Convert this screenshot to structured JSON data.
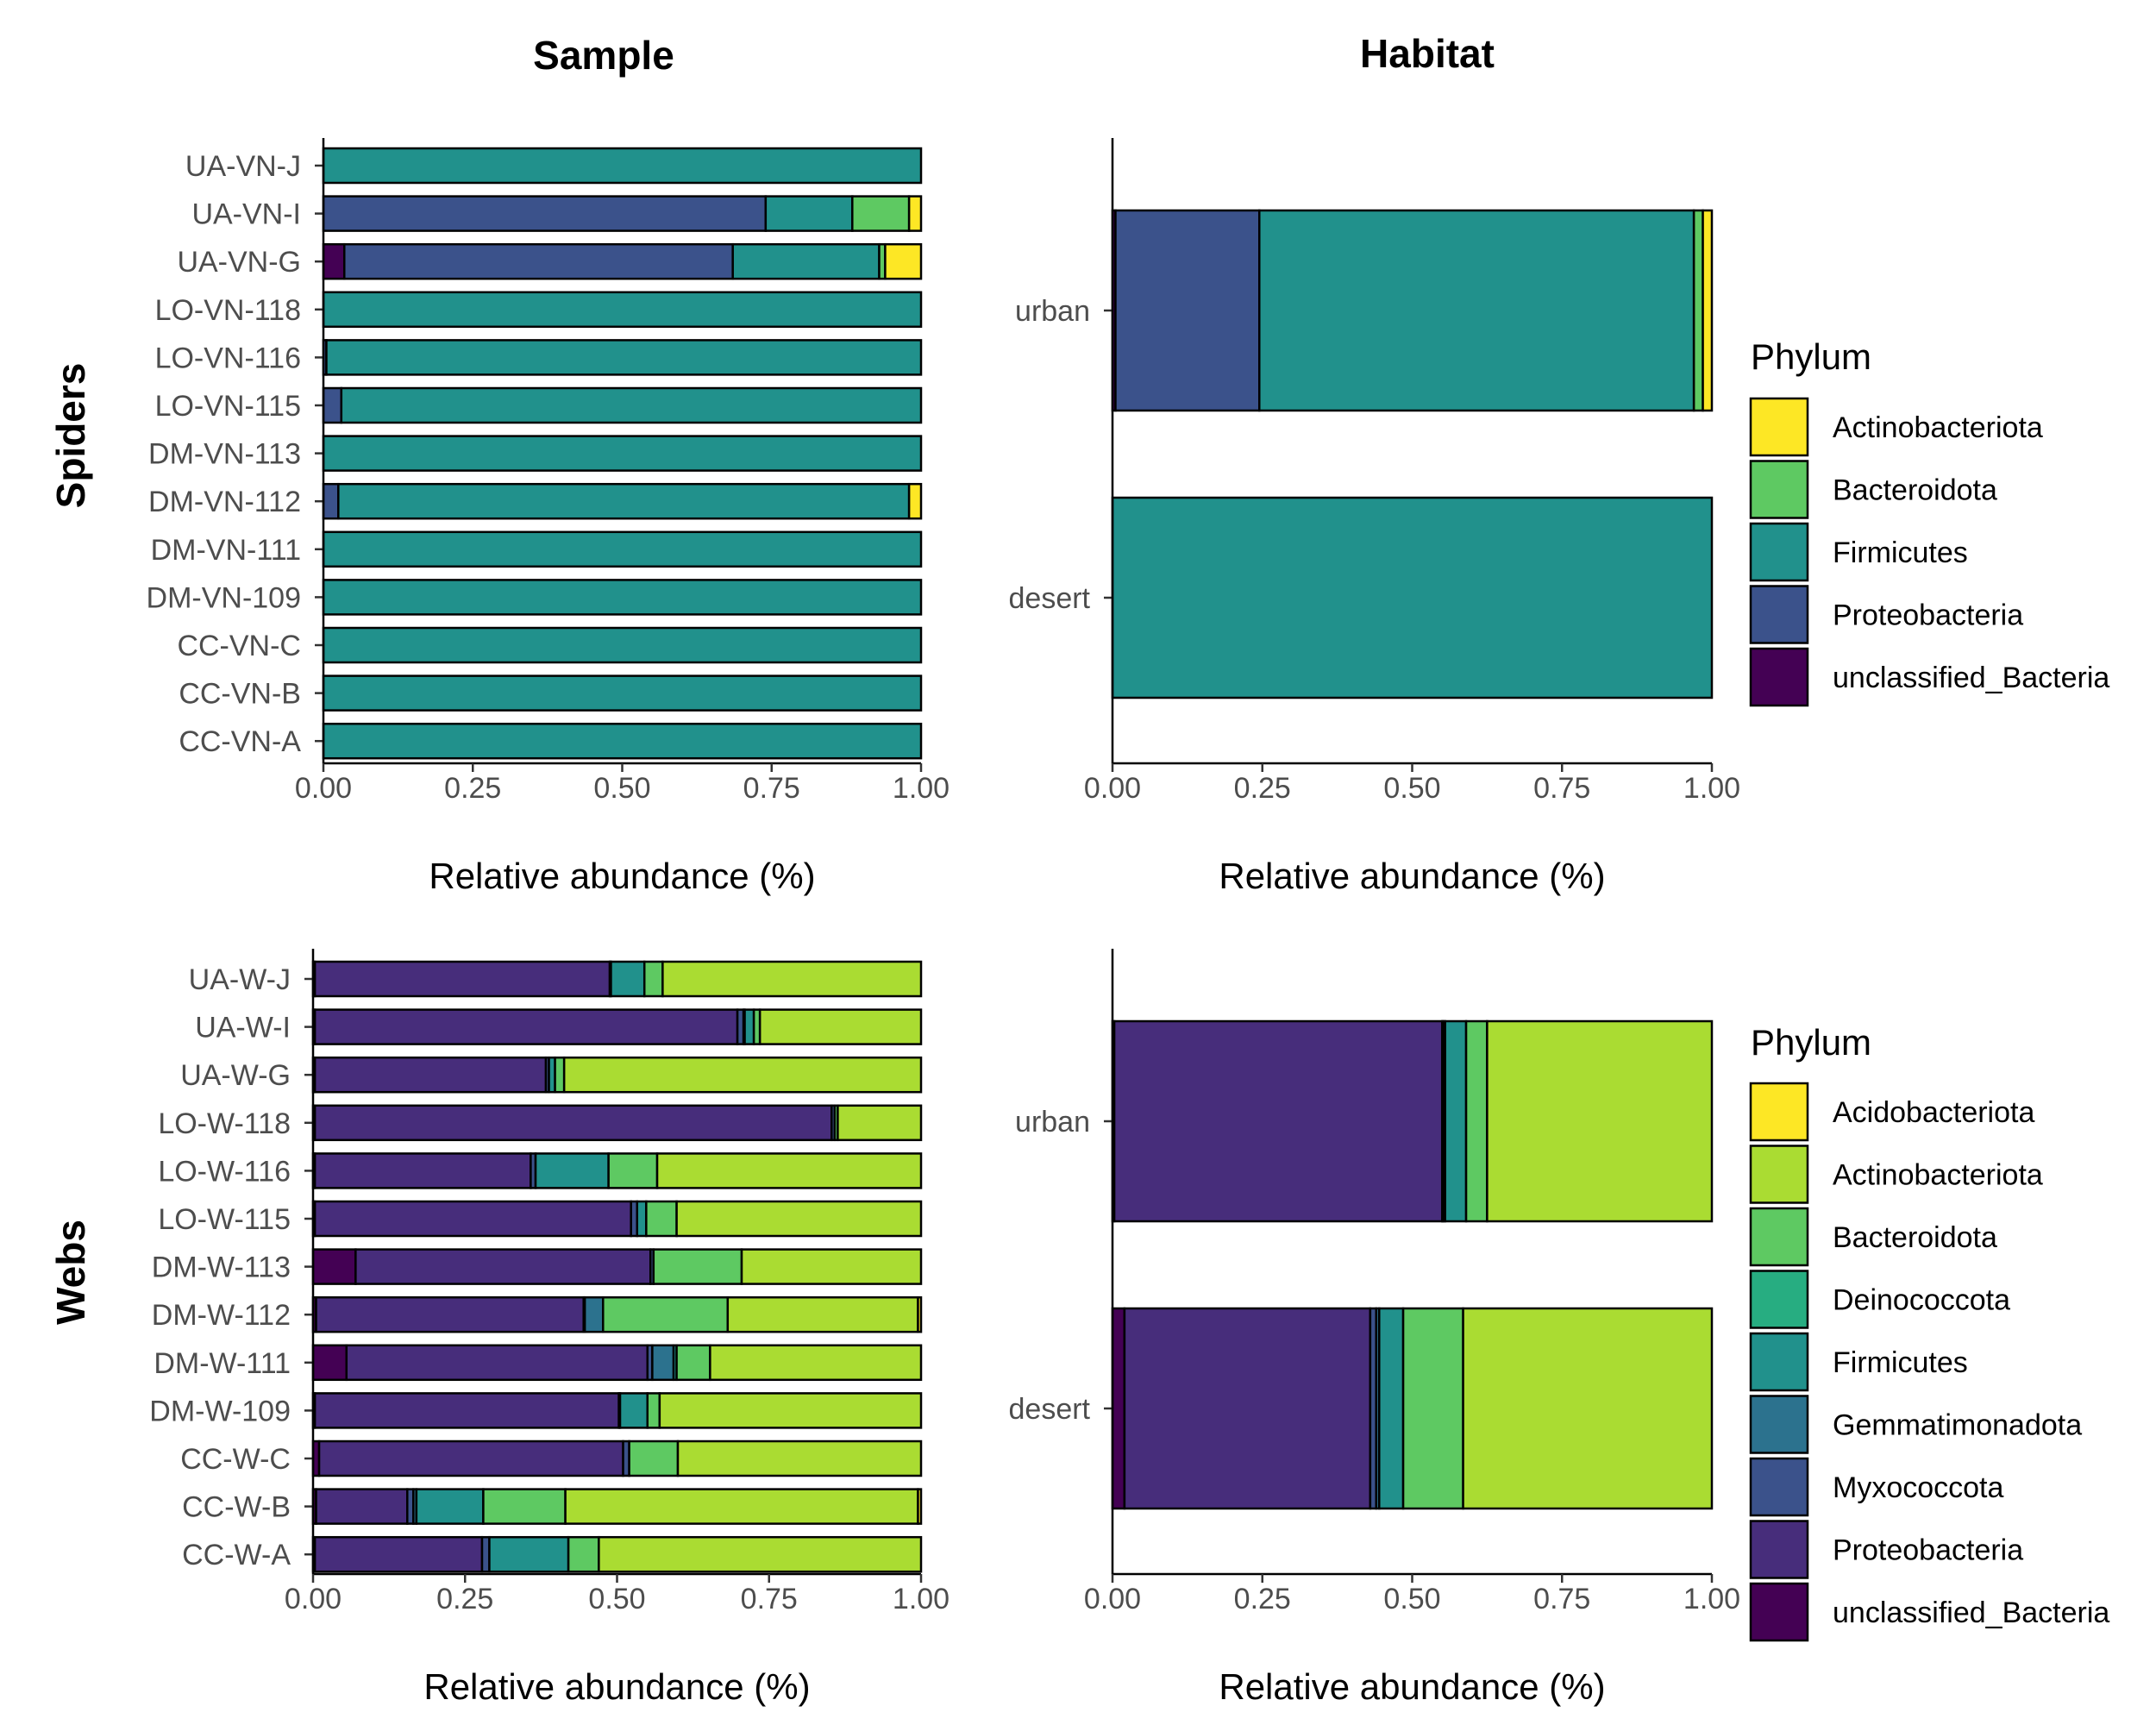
{
  "figure": {
    "col_titles": [
      "Sample",
      "Habitat"
    ],
    "row_titles": [
      "Spiders",
      "Webs"
    ]
  },
  "colors": {
    "Actinobacteriota_spiders": "#FDE725",
    "Bacteroidota": "#5EC962",
    "Firmicutes": "#21918C",
    "Proteobacteria_spiders": "#3B528B",
    "unclassified_Bacteria": "#440154",
    "Acidobacteriota": "#FDE725",
    "Actinobacteriota_webs": "#AADC32",
    "Deinococcota": "#27AD81",
    "Gemmatimonadota": "#2C728E",
    "Myxococcota": "#3B528B",
    "Proteobacteria_webs": "#472D7B"
  },
  "chart_data": [
    {
      "type": "bar",
      "orientation": "horizontal",
      "stacked": true,
      "panel": "Spiders - Sample",
      "xlabel": "Relative abundance (%)",
      "ylabel": "",
      "xlim": [
        0,
        1
      ],
      "xticks": [
        "0.00",
        "0.25",
        "0.50",
        "0.75",
        "1.00"
      ],
      "categories": [
        "UA-VN-J",
        "UA-VN-I",
        "UA-VN-G",
        "LO-VN-118",
        "LO-VN-116",
        "LO-VN-115",
        "DM-VN-113",
        "DM-VN-112",
        "DM-VN-111",
        "DM-VN-109",
        "CC-VN-C",
        "CC-VN-B",
        "CC-VN-A"
      ],
      "series": [
        {
          "name": "unclassified_Bacteria",
          "color": "#440154",
          "values": [
            0,
            0,
            0.035,
            0,
            0,
            0,
            0,
            0,
            0,
            0,
            0,
            0,
            0
          ]
        },
        {
          "name": "Proteobacteria",
          "color": "#3B528B",
          "values": [
            0,
            0.74,
            0.65,
            0,
            0.005,
            0.03,
            0,
            0.025,
            0,
            0,
            0,
            0,
            0
          ]
        },
        {
          "name": "Firmicutes",
          "color": "#21918C",
          "values": [
            1.0,
            0.145,
            0.245,
            1.0,
            0.995,
            0.97,
            1.0,
            0.955,
            1.0,
            1.0,
            1.0,
            1.0,
            1.0
          ]
        },
        {
          "name": "Bacteroidota",
          "color": "#5EC962",
          "values": [
            0,
            0.095,
            0.01,
            0,
            0,
            0,
            0,
            0,
            0,
            0,
            0,
            0,
            0
          ]
        },
        {
          "name": "Actinobacteriota",
          "color": "#FDE725",
          "values": [
            0,
            0.02,
            0.06,
            0,
            0,
            0,
            0,
            0.02,
            0,
            0,
            0,
            0,
            0
          ]
        }
      ]
    },
    {
      "type": "bar",
      "orientation": "horizontal",
      "stacked": true,
      "panel": "Spiders - Habitat",
      "xlabel": "Relative abundance (%)",
      "ylabel": "",
      "xlim": [
        0,
        1
      ],
      "xticks": [
        "0.00",
        "0.25",
        "0.50",
        "0.75",
        "1.00"
      ],
      "categories": [
        "urban",
        "desert"
      ],
      "series": [
        {
          "name": "unclassified_Bacteria",
          "color": "#440154",
          "values": [
            0.005,
            0
          ]
        },
        {
          "name": "Proteobacteria",
          "color": "#3B528B",
          "values": [
            0.24,
            0
          ]
        },
        {
          "name": "Firmicutes",
          "color": "#21918C",
          "values": [
            0.725,
            1.0
          ]
        },
        {
          "name": "Bacteroidota",
          "color": "#5EC962",
          "values": [
            0.015,
            0
          ]
        },
        {
          "name": "Actinobacteriota",
          "color": "#FDE725",
          "values": [
            0.015,
            0
          ]
        }
      ],
      "legend": {
        "title": "Phylum",
        "position": "right",
        "items": [
          {
            "label": "Actinobacteriota",
            "color": "#FDE725"
          },
          {
            "label": "Bacteroidota",
            "color": "#5EC962"
          },
          {
            "label": "Firmicutes",
            "color": "#21918C"
          },
          {
            "label": "Proteobacteria",
            "color": "#3B528B"
          },
          {
            "label": "unclassified_Bacteria",
            "color": "#440154"
          }
        ]
      }
    },
    {
      "type": "bar",
      "orientation": "horizontal",
      "stacked": true,
      "panel": "Webs - Sample",
      "xlabel": "Relative abundance (%)",
      "ylabel": "",
      "xlim": [
        0,
        1
      ],
      "xticks": [
        "0.00",
        "0.25",
        "0.50",
        "0.75",
        "1.00"
      ],
      "categories": [
        "UA-W-J",
        "UA-W-I",
        "UA-W-G",
        "LO-W-118",
        "LO-W-116",
        "LO-W-115",
        "DM-W-113",
        "DM-W-112",
        "DM-W-111",
        "DM-W-109",
        "CC-W-C",
        "CC-W-B",
        "CC-W-A"
      ],
      "series": [
        {
          "name": "unclassified_Bacteria",
          "color": "#440154",
          "values": [
            0.003,
            0.003,
            0.003,
            0.003,
            0.003,
            0.003,
            0.07,
            0.005,
            0.055,
            0.003,
            0.01,
            0.005,
            0.003
          ]
        },
        {
          "name": "Proteobacteria",
          "color": "#472D7B",
          "values": [
            0.485,
            0.695,
            0.38,
            0.85,
            0.355,
            0.52,
            0.485,
            0.44,
            0.495,
            0.5,
            0.5,
            0.15,
            0.275
          ]
        },
        {
          "name": "Myxococcota",
          "color": "#3B528B",
          "values": [
            0.002,
            0.01,
            0.005,
            0.005,
            0.008,
            0.01,
            0.005,
            0.002,
            0.008,
            0.002,
            0.01,
            0.01,
            0.012
          ]
        },
        {
          "name": "Gemmatimonadota",
          "color": "#2C728E",
          "values": [
            0,
            0.002,
            0,
            0,
            0,
            0,
            0,
            0.03,
            0.035,
            0,
            0,
            0.005,
            0
          ]
        },
        {
          "name": "Firmicutes",
          "color": "#21918C",
          "values": [
            0.055,
            0.015,
            0.01,
            0,
            0.12,
            0.015,
            0,
            0,
            0.005,
            0.045,
            0,
            0.11,
            0.13
          ]
        },
        {
          "name": "Deinococcota",
          "color": "#27AD81",
          "values": [
            0,
            0,
            0,
            0,
            0,
            0,
            0,
            0,
            0,
            0,
            0,
            0,
            0
          ]
        },
        {
          "name": "Bacteroidota",
          "color": "#5EC962",
          "values": [
            0.03,
            0.01,
            0.015,
            0.005,
            0.08,
            0.05,
            0.145,
            0.205,
            0.055,
            0.02,
            0.08,
            0.135,
            0.05
          ]
        },
        {
          "name": "Actinobacteriota",
          "color": "#AADC32",
          "values": [
            0.425,
            0.265,
            0.587,
            0.137,
            0.434,
            0.402,
            0.295,
            0.313,
            0.347,
            0.43,
            0.4,
            0.58,
            0.53
          ]
        },
        {
          "name": "Acidobacteriota",
          "color": "#FDE725",
          "values": [
            0,
            0,
            0,
            0,
            0,
            0,
            0,
            0.005,
            0,
            0,
            0,
            0.005,
            0
          ]
        }
      ]
    },
    {
      "type": "bar",
      "orientation": "horizontal",
      "stacked": true,
      "panel": "Webs - Habitat",
      "xlabel": "Relative abundance (%)",
      "ylabel": "",
      "xlim": [
        0,
        1
      ],
      "xticks": [
        "0.00",
        "0.25",
        "0.50",
        "0.75",
        "1.00"
      ],
      "categories": [
        "urban",
        "desert"
      ],
      "series": [
        {
          "name": "unclassified_Bacteria",
          "color": "#440154",
          "values": [
            0.003,
            0.02
          ]
        },
        {
          "name": "Proteobacteria",
          "color": "#472D7B",
          "values": [
            0.547,
            0.41
          ]
        },
        {
          "name": "Myxococcota",
          "color": "#3B528B",
          "values": [
            0.002,
            0.01
          ]
        },
        {
          "name": "Gemmatimonadota",
          "color": "#2C728E",
          "values": [
            0.003,
            0.005
          ]
        },
        {
          "name": "Firmicutes",
          "color": "#21918C",
          "values": [
            0.035,
            0.04
          ]
        },
        {
          "name": "Deinococcota",
          "color": "#27AD81",
          "values": [
            0,
            0
          ]
        },
        {
          "name": "Bacteroidota",
          "color": "#5EC962",
          "values": [
            0.035,
            0.1
          ]
        },
        {
          "name": "Actinobacteriota",
          "color": "#AADC32",
          "values": [
            0.375,
            0.415
          ]
        },
        {
          "name": "Acidobacteriota",
          "color": "#FDE725",
          "values": [
            0,
            0
          ]
        }
      ],
      "legend": {
        "title": "Phylum",
        "position": "right",
        "items": [
          {
            "label": "Acidobacteriota",
            "color": "#FDE725"
          },
          {
            "label": "Actinobacteriota",
            "color": "#AADC32"
          },
          {
            "label": "Bacteroidota",
            "color": "#5EC962"
          },
          {
            "label": "Deinococcota",
            "color": "#27AD81"
          },
          {
            "label": "Firmicutes",
            "color": "#21918C"
          },
          {
            "label": "Gemmatimonadota",
            "color": "#2C728E"
          },
          {
            "label": "Myxococcota",
            "color": "#3B528B"
          },
          {
            "label": "Proteobacteria",
            "color": "#472D7B"
          },
          {
            "label": "unclassified_Bacteria",
            "color": "#440154"
          }
        ]
      }
    }
  ]
}
